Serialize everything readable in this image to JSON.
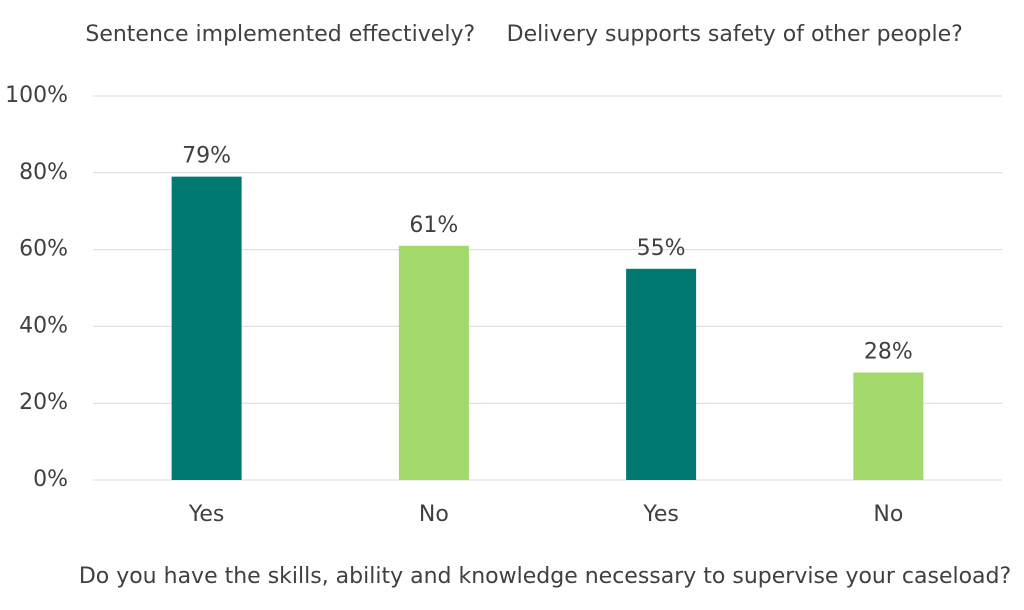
{
  "chart_data": {
    "type": "bar",
    "groups": [
      "Sentence implemented effectively?",
      "Delivery supports safety of other people?"
    ],
    "x_label": "Do you have the skills, ability and knowledge necessary to supervise your caseload?",
    "categories": [
      "Yes",
      "No",
      "Yes",
      "No"
    ],
    "values": [
      79,
      61,
      55,
      28
    ],
    "value_labels": [
      "79%",
      "61%",
      "55%",
      "28%"
    ],
    "colors": [
      "#007a70",
      "#a3d86a",
      "#007a70",
      "#a3d86a"
    ],
    "ylim": [
      0,
      100
    ],
    "yticks": [
      {
        "value": 0,
        "label": "0%"
      },
      {
        "value": 20,
        "label": "20%"
      },
      {
        "value": 40,
        "label": "40%"
      },
      {
        "value": 60,
        "label": "60%"
      },
      {
        "value": 80,
        "label": "80%"
      },
      {
        "value": 100,
        "label": "100%"
      }
    ],
    "grid": true
  }
}
